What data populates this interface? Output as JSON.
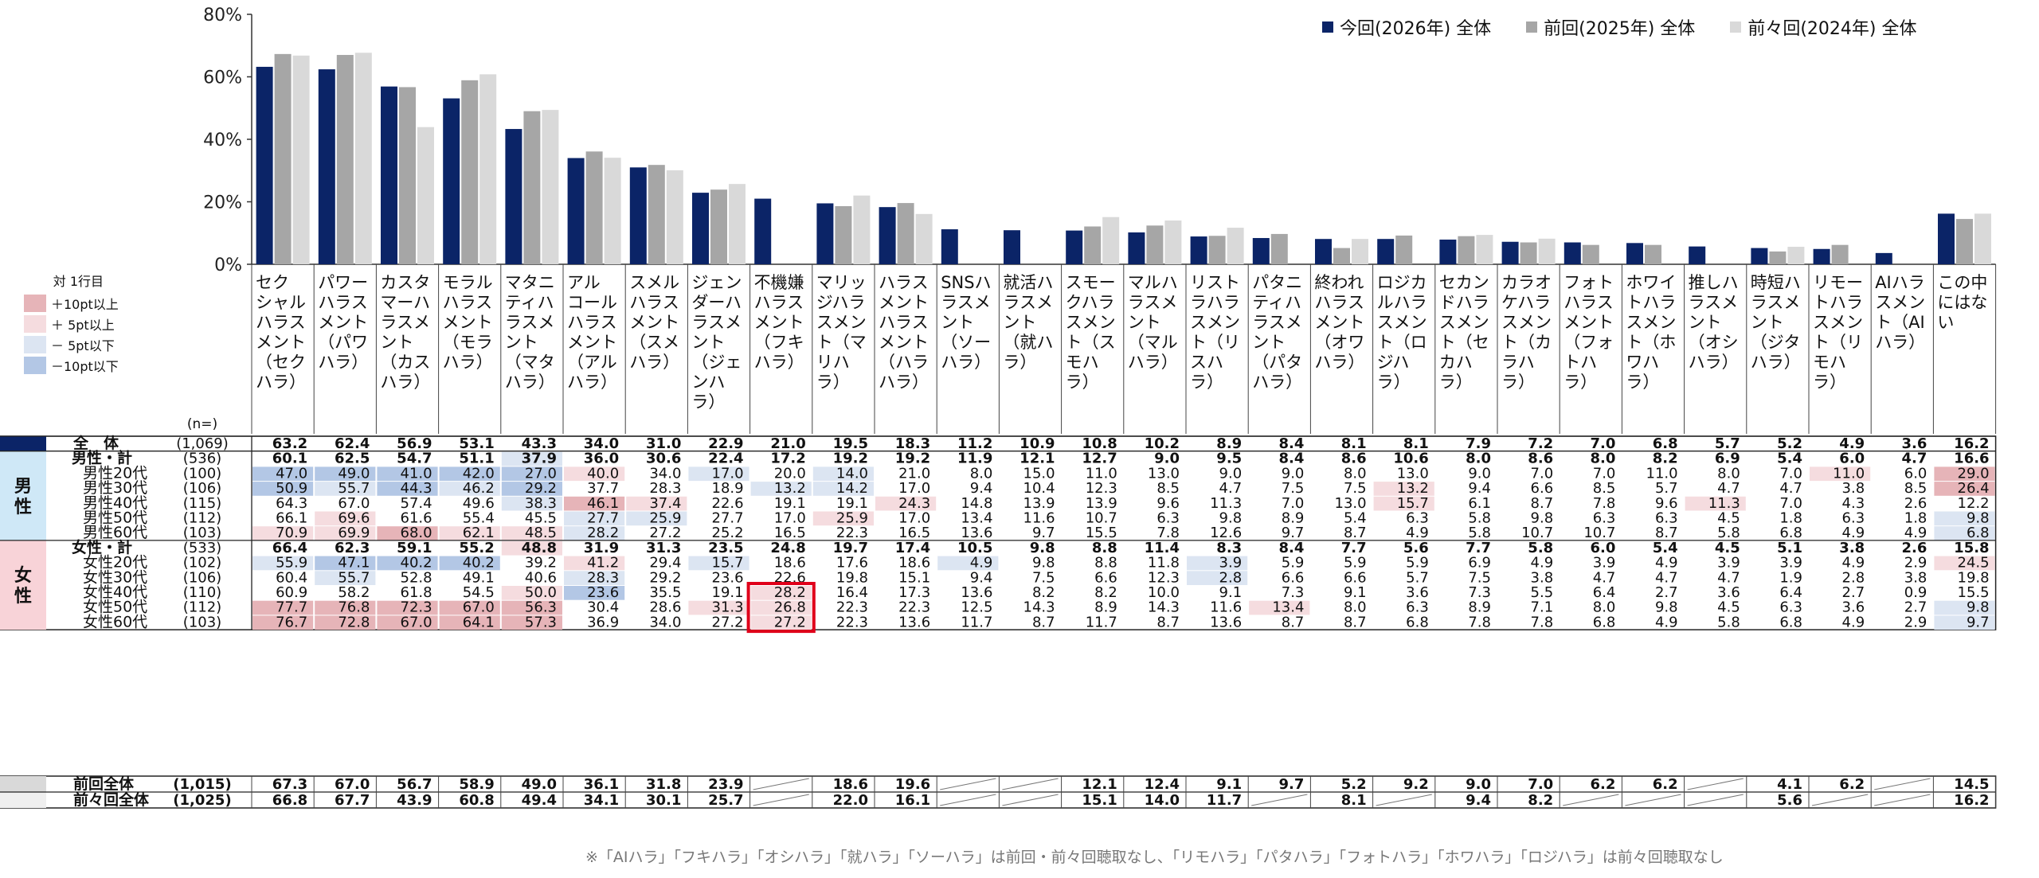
{
  "legend": {
    "items": [
      {
        "label": "今回(2026年) 全体",
        "color": "#0b2467"
      },
      {
        "label": "前回(2025年) 全体",
        "color": "#a6a6a6"
      },
      {
        "label": "前々回(2024年) 全体",
        "color": "#d9d9d9"
      }
    ]
  },
  "key": {
    "title": "対 1行目",
    "items": [
      {
        "label": "＋10pt以上",
        "color": "#e6b4b8"
      },
      {
        "label": "＋ 5pt以上",
        "color": "#f5dcdf"
      },
      {
        "label": "－ 5pt以下",
        "color": "#dce5f2"
      },
      {
        "label": "－10pt以下",
        "color": "#b3c7e5"
      }
    ]
  },
  "chart_data": {
    "type": "bar",
    "ylim": [
      0,
      80
    ],
    "yticks": [
      "0%",
      "20%",
      "40%",
      "60%",
      "80%"
    ],
    "categories": [
      [
        "セク",
        "シャル",
        "ハラス",
        "メント",
        "（セク",
        "ハラ）"
      ],
      [
        "パワー",
        "ハラス",
        "メント",
        "（パワ",
        "ハラ）"
      ],
      [
        "カスタ",
        "マーハ",
        "ラスメ",
        "ント",
        "（カス",
        "ハラ）"
      ],
      [
        "モラル",
        "ハラス",
        "メント",
        "（モラ",
        "ハラ）"
      ],
      [
        "マタニ",
        "ティハ",
        "ラスメ",
        "ント",
        "（マタ",
        "ハラ）"
      ],
      [
        "アル",
        "コール",
        "ハラス",
        "メント",
        "（アル",
        "ハラ）"
      ],
      [
        "スメル",
        "ハラス",
        "メント",
        "（スメ",
        "ハラ）"
      ],
      [
        "ジェン",
        "ダーハ",
        "ラスメ",
        "ント",
        "（ジェ",
        "ンハ",
        "ラ）"
      ],
      [
        "不機嫌",
        "ハラス",
        "メント",
        "（フキ",
        "ハラ）"
      ],
      [
        "マリッ",
        "ジハラ",
        "スメン",
        "ト（マ",
        "リハ",
        "ラ）"
      ],
      [
        "ハラス",
        "メント",
        "ハラス",
        "メント",
        "（ハラ",
        "ハラ）"
      ],
      [
        "SNSハ",
        "ラスメ",
        "ント",
        "（ソー",
        "ハラ）"
      ],
      [
        "就活ハ",
        "ラスメ",
        "ント",
        "（就ハ",
        "ラ）"
      ],
      [
        "スモー",
        "クハラ",
        "スメン",
        "ト（ス",
        "モハ",
        "ラ）"
      ],
      [
        "マルハ",
        "ラスメ",
        "ント",
        "（マル",
        "ハラ）"
      ],
      [
        "リスト",
        "ラハラ",
        "スメン",
        "ト（リ",
        "スハ",
        "ラ）"
      ],
      [
        "パタニ",
        "ティハ",
        "ラスメ",
        "ント",
        "（パタ",
        "ハラ）"
      ],
      [
        "終われ",
        "ハラス",
        "メント",
        "（オワ",
        "ハラ）"
      ],
      [
        "ロジカ",
        "ルハラ",
        "スメン",
        "ト（ロ",
        "ジハ",
        "ラ）"
      ],
      [
        "セカン",
        "ドハラ",
        "スメン",
        "ト（セ",
        "カハ",
        "ラ）"
      ],
      [
        "カラオ",
        "ケハラ",
        "スメン",
        "ト（カ",
        "ラハ",
        "ラ）"
      ],
      [
        "フォト",
        "ハラス",
        "メント",
        "（フォ",
        "トハ",
        "ラ）"
      ],
      [
        "ホワイ",
        "トハラ",
        "スメン",
        "ト（ホ",
        "ワハ",
        "ラ）"
      ],
      [
        "推しハ",
        "ラスメ",
        "ント",
        "（オシ",
        "ハラ）"
      ],
      [
        "時短ハ",
        "ラスメ",
        "ント",
        "（ジタ",
        "ハラ）"
      ],
      [
        "リモー",
        "トハラ",
        "スメン",
        "ト（リ",
        "モハ",
        "ラ）"
      ],
      [
        "AIハラ",
        "スメン",
        "ト（AI",
        "ハラ）"
      ],
      [
        "この中",
        "にはな",
        "い"
      ]
    ],
    "series": [
      {
        "name": "今回(2026年) 全体",
        "color": "#0b2467",
        "values": [
          63.2,
          62.4,
          56.9,
          53.1,
          43.3,
          34.0,
          31.0,
          22.9,
          21.0,
          19.5,
          18.3,
          11.2,
          10.9,
          10.8,
          10.2,
          8.9,
          8.4,
          8.1,
          8.1,
          7.9,
          7.2,
          7.0,
          6.8,
          5.7,
          5.2,
          4.9,
          3.6,
          16.2
        ]
      },
      {
        "name": "前回(2025年) 全体",
        "color": "#a6a6a6",
        "values": [
          67.3,
          67.0,
          56.7,
          58.9,
          49.0,
          36.1,
          31.8,
          23.9,
          null,
          18.6,
          19.6,
          null,
          null,
          12.1,
          12.4,
          9.1,
          9.7,
          5.2,
          9.2,
          9.0,
          7.0,
          6.2,
          6.2,
          null,
          4.1,
          6.2,
          null,
          14.5
        ]
      },
      {
        "name": "前々回(2024年) 全体",
        "color": "#d9d9d9",
        "values": [
          66.8,
          67.7,
          43.9,
          60.8,
          49.4,
          34.1,
          30.1,
          25.7,
          null,
          22.0,
          16.1,
          null,
          null,
          15.1,
          14.0,
          11.7,
          null,
          8.1,
          null,
          9.4,
          8.2,
          null,
          null,
          null,
          5.6,
          null,
          null,
          16.2
        ]
      }
    ]
  },
  "table": {
    "n_header": "(n=)",
    "groups": [
      {
        "label": "男性",
        "color": "#cfe8f7",
        "start": 1,
        "count": 6
      },
      {
        "label": "女性",
        "color": "#f8d3d8",
        "start": 7,
        "count": 6
      }
    ],
    "rows": [
      {
        "label": "全　体",
        "n": "(1,069)",
        "total": true,
        "values": [
          "63.2",
          "62.4",
          "56.9",
          "53.1",
          "43.3",
          "34.0",
          "31.0",
          "22.9",
          "21.0",
          "19.5",
          "18.3",
          "11.2",
          "10.9",
          "10.8",
          "10.2",
          "8.9",
          "8.4",
          "8.1",
          "8.1",
          "7.9",
          "7.2",
          "7.0",
          "6.8",
          "5.7",
          "5.2",
          "4.9",
          "3.6",
          "16.2"
        ]
      },
      {
        "label": "男性・計",
        "n": "(536)",
        "bold": true,
        "values": [
          "60.1",
          "62.5",
          "54.7",
          "51.1",
          "37.9",
          "36.0",
          "30.6",
          "22.4",
          "17.2",
          "19.2",
          "19.2",
          "11.9",
          "12.1",
          "12.7",
          "9.0",
          "9.5",
          "8.4",
          "8.6",
          "10.6",
          "8.0",
          "8.6",
          "8.0",
          "8.2",
          "6.9",
          "5.4",
          "6.0",
          "4.7",
          "16.6"
        ]
      },
      {
        "label": "男性20代",
        "n": "(100)",
        "values": [
          "47.0",
          "49.0",
          "41.0",
          "42.0",
          "27.0",
          "40.0",
          "34.0",
          "17.0",
          "20.0",
          "14.0",
          "21.0",
          "8.0",
          "15.0",
          "11.0",
          "13.0",
          "9.0",
          "9.0",
          "8.0",
          "13.0",
          "9.0",
          "7.0",
          "7.0",
          "11.0",
          "8.0",
          "7.0",
          "11.0",
          "6.0",
          "29.0"
        ]
      },
      {
        "label": "男性30代",
        "n": "(106)",
        "values": [
          "50.9",
          "55.7",
          "44.3",
          "46.2",
          "29.2",
          "37.7",
          "28.3",
          "18.9",
          "13.2",
          "14.2",
          "17.0",
          "9.4",
          "10.4",
          "12.3",
          "8.5",
          "4.7",
          "7.5",
          "7.5",
          "13.2",
          "9.4",
          "6.6",
          "8.5",
          "5.7",
          "4.7",
          "4.7",
          "3.8",
          "8.5",
          "26.4"
        ]
      },
      {
        "label": "男性40代",
        "n": "(115)",
        "values": [
          "64.3",
          "67.0",
          "57.4",
          "49.6",
          "38.3",
          "46.1",
          "37.4",
          "22.6",
          "19.1",
          "19.1",
          "24.3",
          "14.8",
          "13.9",
          "13.9",
          "9.6",
          "11.3",
          "7.0",
          "13.0",
          "15.7",
          "6.1",
          "8.7",
          "7.8",
          "9.6",
          "11.3",
          "7.0",
          "4.3",
          "2.6",
          "12.2"
        ]
      },
      {
        "label": "男性50代",
        "n": "(112)",
        "values": [
          "66.1",
          "69.6",
          "61.6",
          "55.4",
          "45.5",
          "27.7",
          "25.9",
          "27.7",
          "17.0",
          "25.9",
          "17.0",
          "13.4",
          "11.6",
          "10.7",
          "6.3",
          "9.8",
          "8.9",
          "5.4",
          "6.3",
          "5.8",
          "9.8",
          "6.3",
          "6.3",
          "4.5",
          "1.8",
          "6.3",
          "1.8",
          "9.8"
        ]
      },
      {
        "label": "男性60代",
        "n": "(103)",
        "values": [
          "70.9",
          "69.9",
          "68.0",
          "62.1",
          "48.5",
          "28.2",
          "27.2",
          "25.2",
          "16.5",
          "22.3",
          "16.5",
          "13.6",
          "9.7",
          "15.5",
          "7.8",
          "12.6",
          "9.7",
          "8.7",
          "4.9",
          "5.8",
          "10.7",
          "10.7",
          "8.7",
          "5.8",
          "6.8",
          "4.9",
          "4.9",
          "6.8"
        ]
      },
      {
        "label": "女性・計",
        "n": "(533)",
        "bold": true,
        "values": [
          "66.4",
          "62.3",
          "59.1",
          "55.2",
          "48.8",
          "31.9",
          "31.3",
          "23.5",
          "24.8",
          "19.7",
          "17.4",
          "10.5",
          "9.8",
          "8.8",
          "11.4",
          "8.3",
          "8.4",
          "7.7",
          "5.6",
          "7.7",
          "5.8",
          "6.0",
          "5.4",
          "4.5",
          "5.1",
          "3.8",
          "2.6",
          "15.8"
        ]
      },
      {
        "label": "女性20代",
        "n": "(102)",
        "values": [
          "55.9",
          "47.1",
          "40.2",
          "40.2",
          "39.2",
          "41.2",
          "29.4",
          "15.7",
          "18.6",
          "17.6",
          "18.6",
          "4.9",
          "9.8",
          "8.8",
          "11.8",
          "3.9",
          "5.9",
          "5.9",
          "5.9",
          "6.9",
          "4.9",
          "3.9",
          "4.9",
          "3.9",
          "3.9",
          "4.9",
          "2.9",
          "24.5"
        ]
      },
      {
        "label": "女性30代",
        "n": "(106)",
        "values": [
          "60.4",
          "55.7",
          "52.8",
          "49.1",
          "40.6",
          "28.3",
          "29.2",
          "23.6",
          "22.6",
          "19.8",
          "15.1",
          "9.4",
          "7.5",
          "6.6",
          "12.3",
          "2.8",
          "6.6",
          "6.6",
          "5.7",
          "7.5",
          "3.8",
          "4.7",
          "4.7",
          "4.7",
          "1.9",
          "2.8",
          "3.8",
          "19.8"
        ]
      },
      {
        "label": "女性40代",
        "n": "(110)",
        "values": [
          "60.9",
          "58.2",
          "61.8",
          "54.5",
          "50.0",
          "23.6",
          "35.5",
          "19.1",
          "28.2",
          "16.4",
          "17.3",
          "13.6",
          "8.2",
          "8.2",
          "10.0",
          "9.1",
          "7.3",
          "9.1",
          "3.6",
          "7.3",
          "5.5",
          "6.4",
          "2.7",
          "3.6",
          "6.4",
          "2.7",
          "0.9",
          "15.5"
        ]
      },
      {
        "label": "女性50代",
        "n": "(112)",
        "values": [
          "77.7",
          "76.8",
          "72.3",
          "67.0",
          "56.3",
          "30.4",
          "28.6",
          "31.3",
          "26.8",
          "22.3",
          "22.3",
          "12.5",
          "14.3",
          "8.9",
          "14.3",
          "11.6",
          "13.4",
          "8.0",
          "6.3",
          "8.9",
          "7.1",
          "8.0",
          "9.8",
          "4.5",
          "6.3",
          "3.6",
          "2.7",
          "9.8"
        ]
      },
      {
        "label": "女性60代",
        "n": "(103)",
        "values": [
          "76.7",
          "72.8",
          "67.0",
          "64.1",
          "57.3",
          "36.9",
          "34.0",
          "27.2",
          "27.2",
          "22.3",
          "13.6",
          "11.7",
          "8.7",
          "11.7",
          "8.7",
          "13.6",
          "8.7",
          "8.7",
          "6.8",
          "7.8",
          "7.8",
          "6.8",
          "4.9",
          "5.8",
          "6.8",
          "4.9",
          "2.9",
          "9.7"
        ]
      }
    ],
    "prev_rows": [
      {
        "label": "前回全体",
        "n": "(1,015)",
        "color": "#d9d9d9",
        "values": [
          "67.3",
          "67.0",
          "56.7",
          "58.9",
          "49.0",
          "36.1",
          "31.8",
          "23.9",
          null,
          "18.6",
          "19.6",
          null,
          null,
          "12.1",
          "12.4",
          "9.1",
          "9.7",
          "5.2",
          "9.2",
          "9.0",
          "7.0",
          "6.2",
          "6.2",
          null,
          "4.1",
          "6.2",
          null,
          "14.5"
        ]
      },
      {
        "label": "前々回全体",
        "n": "(1,025)",
        "color": "#efefef",
        "values": [
          "66.8",
          "67.7",
          "43.9",
          "60.8",
          "49.4",
          "34.1",
          "30.1",
          "25.7",
          null,
          "22.0",
          "16.1",
          null,
          null,
          "15.1",
          "14.0",
          "11.7",
          null,
          "8.1",
          null,
          "9.4",
          "8.2",
          null,
          null,
          null,
          "5.6",
          null,
          null,
          "16.2"
        ]
      }
    ]
  },
  "note": "※「AIハラ」「フキハラ」「オシハラ」「就ハラ」「ソーハラ」は前回・前々回聴取なし、「リモハラ」「パタハラ」「フォトハラ」「ホワハラ」「ロジハラ」は前々回聴取なし"
}
